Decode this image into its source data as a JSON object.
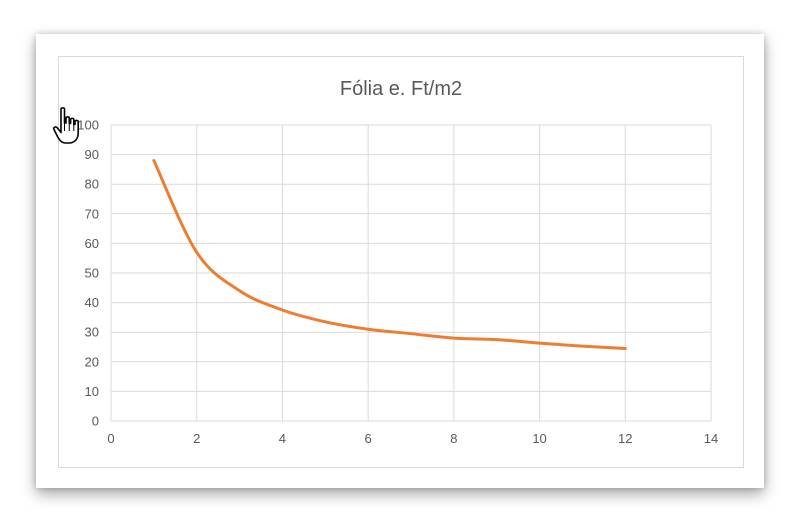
{
  "colors": {
    "series": "#ed7d31",
    "grid": "#d9d9d9",
    "text": "#595959"
  },
  "icons": {
    "cursor": "hand-pointer-icon"
  },
  "chart_data": {
    "type": "line",
    "title": "Fólia e. Ft/m2",
    "xlabel": "",
    "ylabel": "",
    "xlim": [
      0,
      14
    ],
    "ylim": [
      0,
      100
    ],
    "x_ticks": [
      0,
      2,
      4,
      6,
      8,
      10,
      12,
      14
    ],
    "y_ticks": [
      0,
      10,
      20,
      30,
      40,
      50,
      60,
      70,
      80,
      90,
      100
    ],
    "grid": true,
    "legend": "none",
    "smooth": true,
    "series": [
      {
        "x": [
          1,
          2,
          3,
          4,
          5,
          6,
          7,
          8,
          9,
          10,
          11,
          12
        ],
        "values": [
          88,
          57,
          44,
          37.5,
          33.5,
          31,
          29.5,
          28,
          27.5,
          26.3,
          25.3,
          24.5
        ]
      }
    ]
  }
}
